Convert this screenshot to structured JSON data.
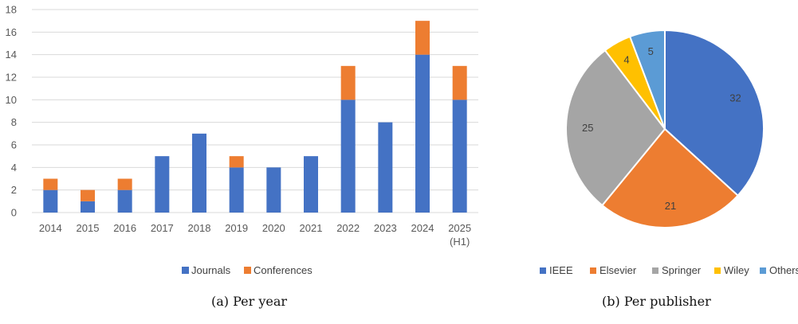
{
  "chart_data": [
    {
      "type": "bar",
      "stacked": true,
      "categories": [
        "2014",
        "2015",
        "2016",
        "2017",
        "2018",
        "2019",
        "2020",
        "2021",
        "2022",
        "2023",
        "2024",
        "2025"
      ],
      "category_sublabels": {
        "2025": "(H1)"
      },
      "series": [
        {
          "name": "Journals",
          "color": "#4472C4",
          "values": [
            2,
            1,
            2,
            5,
            7,
            4,
            4,
            5,
            10,
            8,
            14,
            10
          ]
        },
        {
          "name": "Conferences",
          "color": "#ED7D31",
          "values": [
            1,
            1,
            1,
            0,
            0,
            1,
            0,
            0,
            3,
            0,
            3,
            3
          ]
        }
      ],
      "yticks": [
        "0",
        "2",
        "4",
        "6",
        "8",
        "10",
        "12",
        "14",
        "16",
        "18"
      ],
      "ylim": [
        0,
        18
      ],
      "grid": true,
      "legend_position": "bottom",
      "caption": "(a) Per year"
    },
    {
      "type": "pie",
      "slices": [
        {
          "name": "IEEE",
          "value": 32,
          "label": "32",
          "color": "#4472C4"
        },
        {
          "name": "Elsevier",
          "value": 21,
          "label": "21",
          "color": "#ED7D31"
        },
        {
          "name": "Springer",
          "value": 25,
          "label": "25",
          "color": "#A5A5A5"
        },
        {
          "name": "Wiley",
          "value": 4,
          "label": "4",
          "color": "#FFC000"
        },
        {
          "name": "Others",
          "value": 5,
          "label": "5",
          "color": "#5B9BD5"
        }
      ],
      "legend_position": "bottom",
      "caption": "(b) Per publisher"
    }
  ]
}
